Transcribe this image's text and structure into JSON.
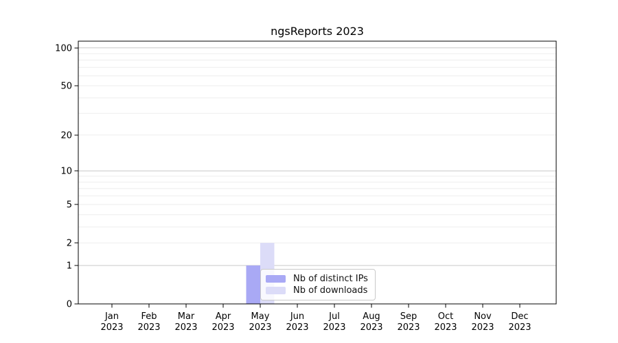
{
  "chart_data": {
    "type": "bar",
    "title": "ngsReports 2023",
    "categories": [
      "Jan 2023",
      "Feb 2023",
      "Mar 2023",
      "Apr 2023",
      "May 2023",
      "Jun 2023",
      "Jul 2023",
      "Aug 2023",
      "Sep 2023",
      "Oct 2023",
      "Nov 2023",
      "Dec 2023"
    ],
    "series": [
      {
        "name": "Nb of distinct IPs",
        "color": "#a9a9f5",
        "values": [
          0,
          0,
          0,
          0,
          1,
          0,
          0,
          0,
          0,
          0,
          0,
          0
        ]
      },
      {
        "name": "Nb of downloads",
        "color": "#dcdcf8",
        "values": [
          0,
          0,
          0,
          0,
          2,
          0,
          0,
          0,
          0,
          0,
          0,
          0
        ]
      }
    ],
    "xlabel": "",
    "ylabel": "",
    "y_scale": "log10(value+1)",
    "y_ticks": [
      0,
      1,
      2,
      5,
      10,
      20,
      50,
      100
    ],
    "ylim": [
      0,
      113
    ],
    "grid": {
      "major": [
        1,
        10,
        100
      ],
      "minor": [
        2,
        3,
        4,
        5,
        6,
        7,
        8,
        9,
        20,
        30,
        40,
        50,
        60,
        70,
        80,
        90
      ],
      "major_color": "#c8c8c8",
      "minor_color": "#ededed"
    },
    "legend": {
      "position": "inside-bottom-center"
    }
  },
  "colors": {
    "axis": "#000000",
    "text": "#000000",
    "background": "#ffffff"
  }
}
